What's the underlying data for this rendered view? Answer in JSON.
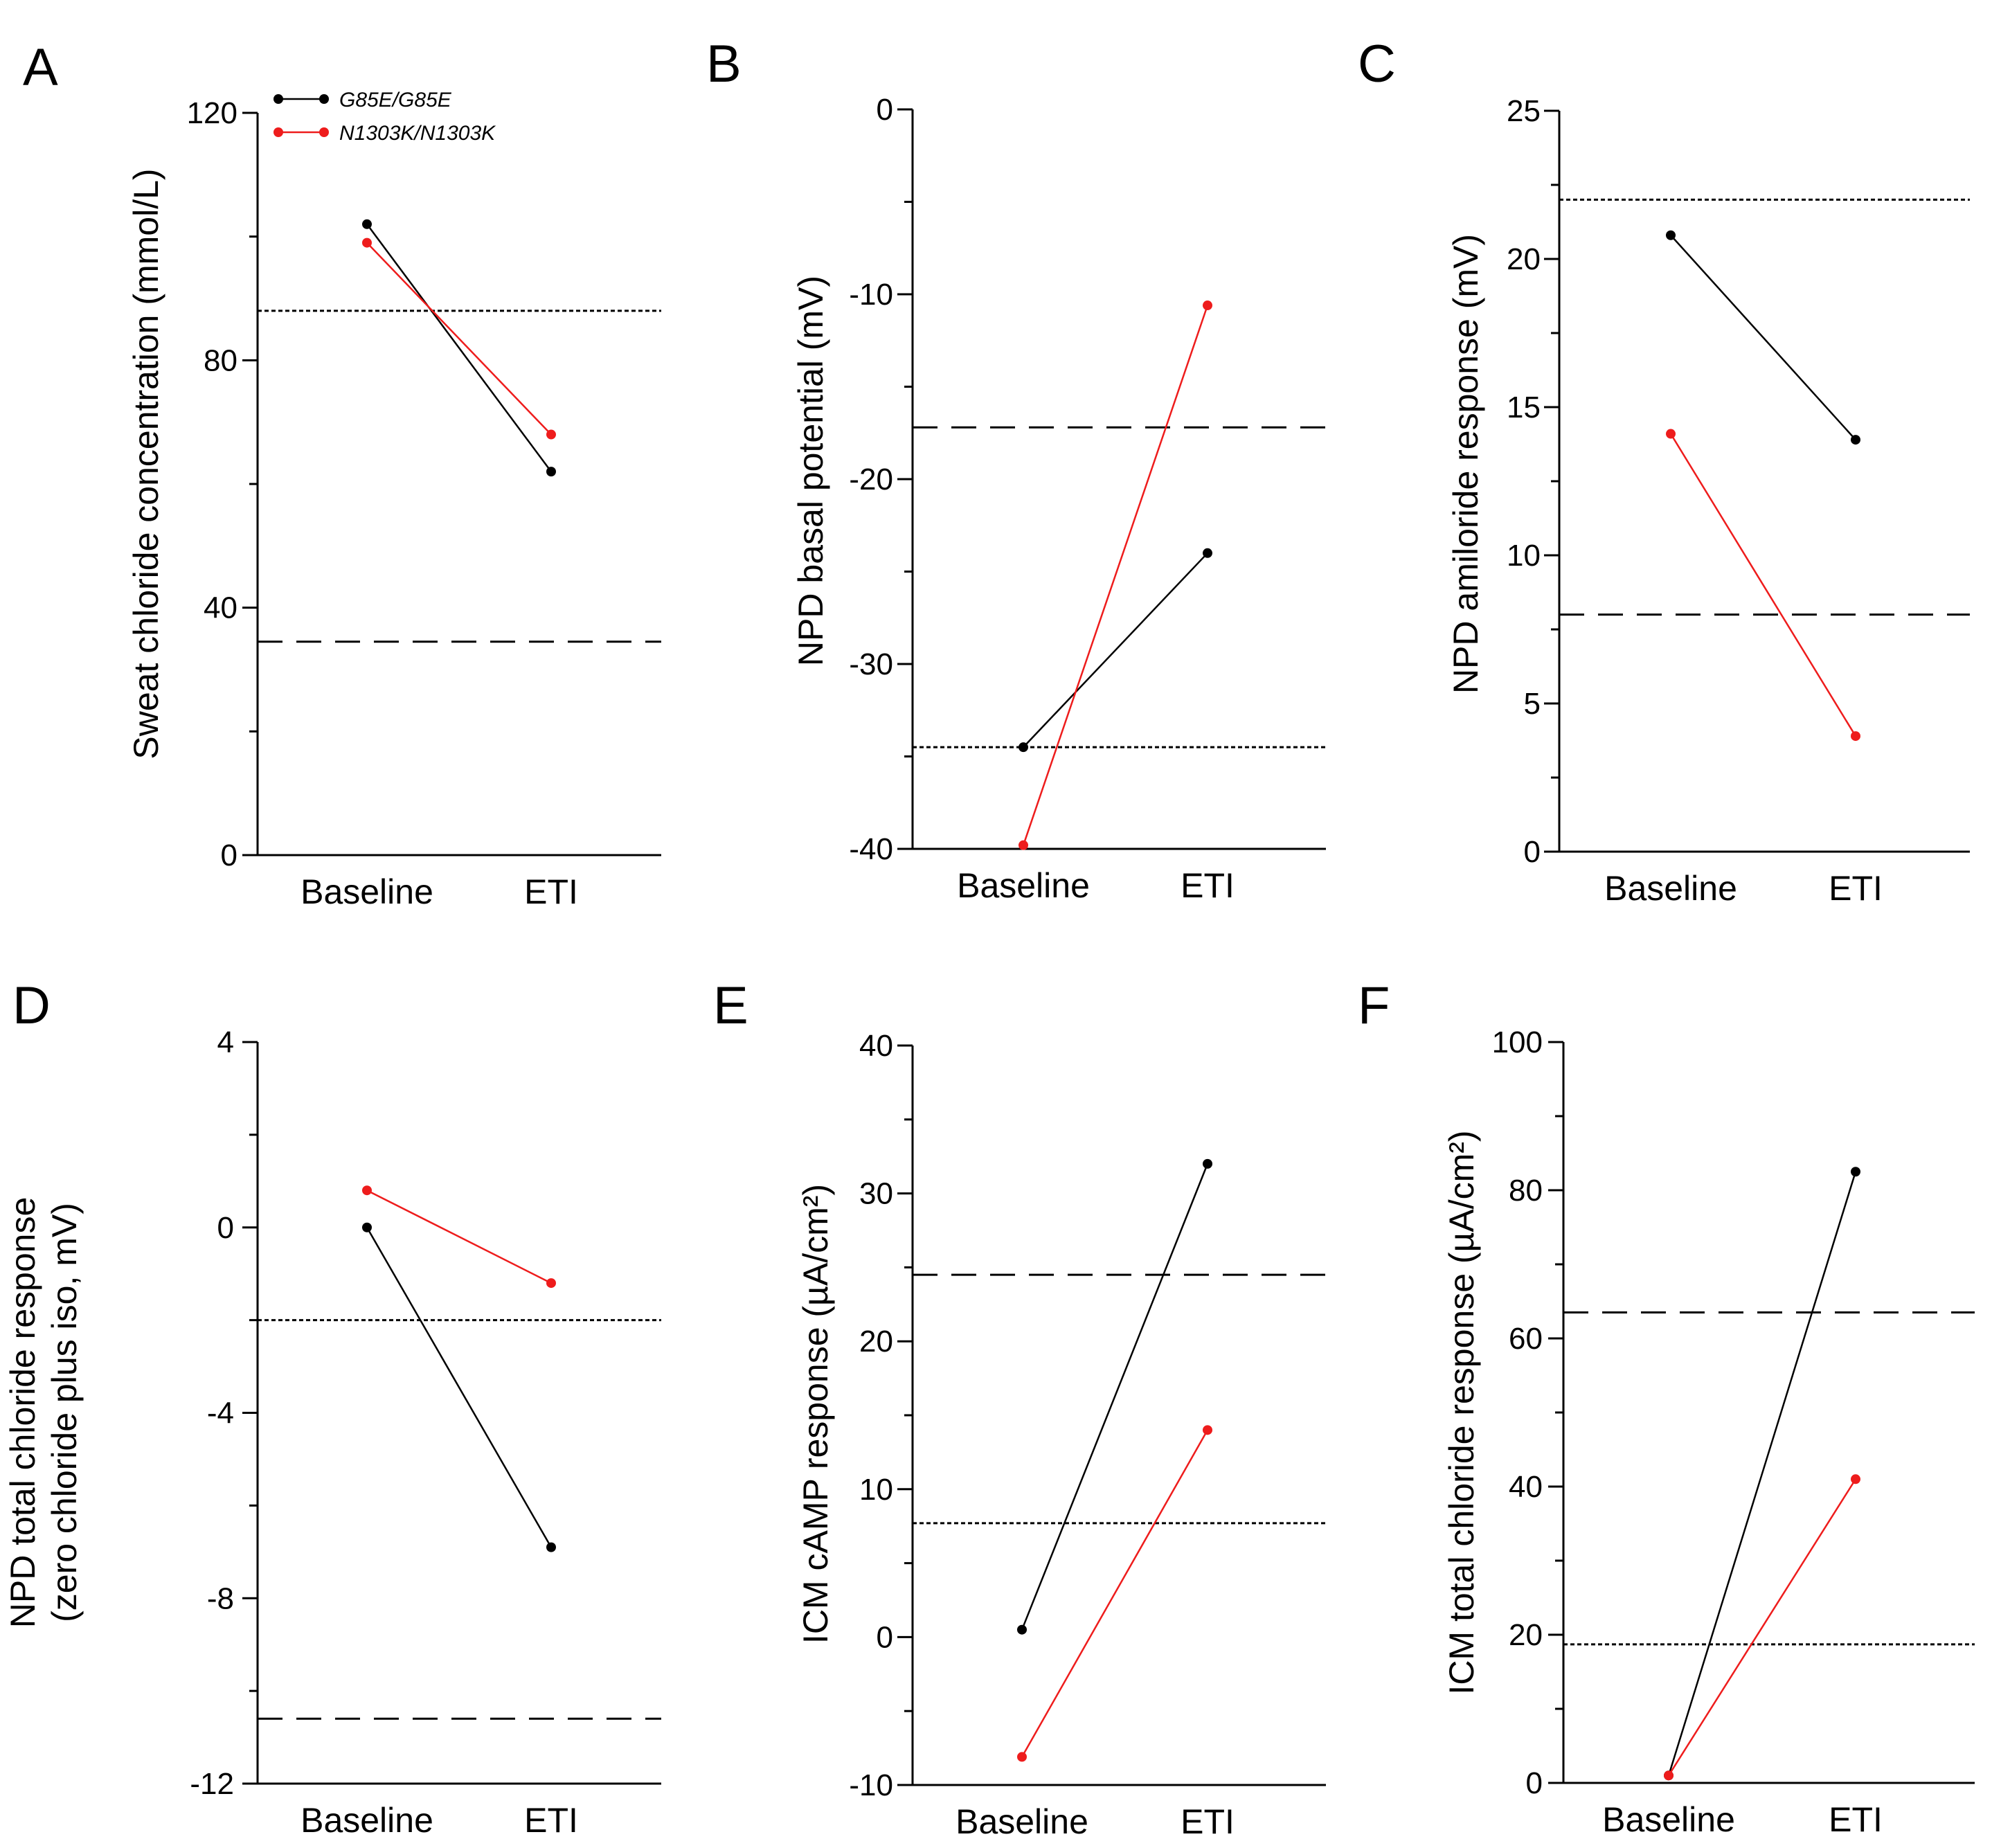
{
  "chart_data": [
    {
      "panel": "A",
      "type": "line",
      "categories": [
        "Baseline",
        "ETI"
      ],
      "ylabel": "Sweat chloride concentration (mmol/L)",
      "ylim": [
        0,
        120
      ],
      "major_ticks": [
        0,
        40,
        80,
        120
      ],
      "minor_ticks": [
        20,
        60,
        100
      ],
      "series": [
        {
          "name": "G85E/G85E",
          "color": "#000000",
          "values": [
            102,
            62
          ]
        },
        {
          "name": "N1303K/N1303K",
          "color": "#ee1c1c",
          "values": [
            99,
            68
          ]
        }
      ],
      "reference_lines": [
        {
          "value": 88,
          "style": "dotted"
        },
        {
          "value": 34.5,
          "style": "dashed"
        }
      ],
      "legend": "top-left"
    },
    {
      "panel": "B",
      "type": "line",
      "categories": [
        "Baseline",
        "ETI"
      ],
      "ylabel": "NPD basal potential (mV)",
      "ylim": [
        -40,
        0
      ],
      "major_ticks": [
        -40,
        -30,
        -20,
        -10,
        0
      ],
      "minor_ticks": [
        -35,
        -25,
        -15,
        -5
      ],
      "series": [
        {
          "name": "G85E/G85E",
          "color": "#000000",
          "values": [
            -34.5,
            -24
          ]
        },
        {
          "name": "N1303K/N1303K",
          "color": "#ee1c1c",
          "values": [
            -39.8,
            -10.6
          ]
        }
      ],
      "reference_lines": [
        {
          "value": -17.2,
          "style": "dashed"
        },
        {
          "value": -34.5,
          "style": "dotted"
        }
      ]
    },
    {
      "panel": "C",
      "type": "line",
      "categories": [
        "Baseline",
        "ETI"
      ],
      "ylabel": "NPD amiloride response (mV)",
      "ylim": [
        0,
        25
      ],
      "major_ticks": [
        0,
        5,
        10,
        15,
        20,
        25
      ],
      "minor_ticks": [
        2.5,
        7.5,
        12.5,
        17.5,
        22.5
      ],
      "series": [
        {
          "name": "G85E/G85E",
          "color": "#000000",
          "values": [
            20.8,
            13.9
          ]
        },
        {
          "name": "N1303K/N1303K",
          "color": "#ee1c1c",
          "values": [
            14.1,
            3.9
          ]
        }
      ],
      "reference_lines": [
        {
          "value": 22,
          "style": "dotted"
        },
        {
          "value": 8,
          "style": "dashed"
        }
      ]
    },
    {
      "panel": "D",
      "type": "line",
      "categories": [
        "Baseline",
        "ETI"
      ],
      "ylabel": "NPD total chloride response",
      "ylabel2": "(zero chloride plus iso, mV)",
      "ylim": [
        -12,
        4
      ],
      "major_ticks": [
        -12,
        -8,
        -4,
        0,
        4
      ],
      "minor_ticks": [
        -10,
        -6,
        -2,
        2
      ],
      "series": [
        {
          "name": "G85E/G85E",
          "color": "#000000",
          "values": [
            0,
            -6.9
          ]
        },
        {
          "name": "N1303K/N1303K",
          "color": "#ee1c1c",
          "values": [
            0.8,
            -1.2
          ]
        }
      ],
      "reference_lines": [
        {
          "value": -2,
          "style": "dotted"
        },
        {
          "value": -10.6,
          "style": "dashed"
        }
      ]
    },
    {
      "panel": "E",
      "type": "line",
      "categories": [
        "Baseline",
        "ETI"
      ],
      "ylabel": "ICM cAMP response (µA/cm²)",
      "ylim": [
        -10,
        40
      ],
      "major_ticks": [
        -10,
        0,
        10,
        20,
        30,
        40
      ],
      "minor_ticks": [
        -5,
        5,
        15,
        25,
        35
      ],
      "series": [
        {
          "name": "G85E/G85E",
          "color": "#000000",
          "values": [
            0.5,
            32
          ]
        },
        {
          "name": "N1303K/N1303K",
          "color": "#ee1c1c",
          "values": [
            -8.1,
            14
          ]
        }
      ],
      "reference_lines": [
        {
          "value": 24.5,
          "style": "dashed"
        },
        {
          "value": 7.7,
          "style": "dotted"
        }
      ]
    },
    {
      "panel": "F",
      "type": "line",
      "categories": [
        "Baseline",
        "ETI"
      ],
      "ylabel": "ICM total chloride response (µA/cm²)",
      "ylim": [
        0,
        100
      ],
      "major_ticks": [
        0,
        20,
        40,
        60,
        80,
        100
      ],
      "minor_ticks": [
        10,
        30,
        50,
        70,
        90
      ],
      "series": [
        {
          "name": "G85E/G85E",
          "color": "#000000",
          "values": [
            1,
            82.5
          ]
        },
        {
          "name": "N1303K/N1303K",
          "color": "#ee1c1c",
          "values": [
            1,
            41
          ]
        }
      ],
      "reference_lines": [
        {
          "value": 63.5,
          "style": "dashed"
        },
        {
          "value": 18.7,
          "style": "dotted"
        }
      ]
    }
  ]
}
